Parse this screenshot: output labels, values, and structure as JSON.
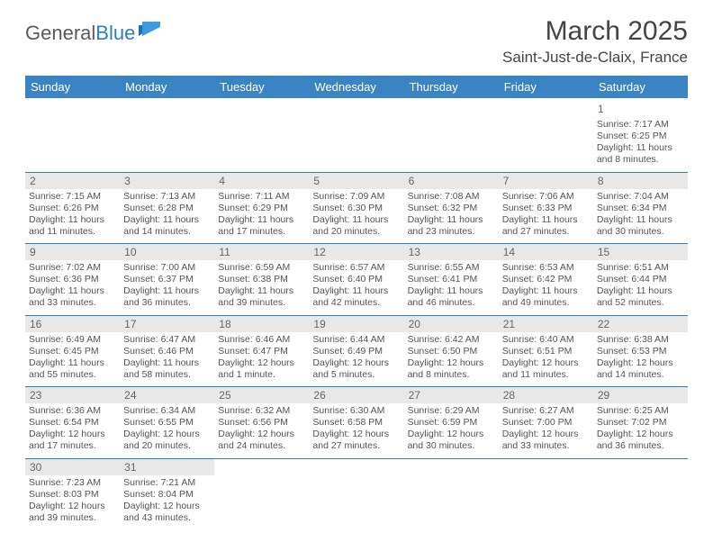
{
  "brand": {
    "part1": "General",
    "part2": "Blue"
  },
  "title": "March 2025",
  "location": "Saint-Just-de-Claix, France",
  "colors": {
    "header_bg": "#3b84c4",
    "header_text": "#ffffff",
    "row_divider": "#2f7ec0",
    "daynum_bg": "#e8e8e8",
    "body_text": "#555555",
    "brand_gray": "#5a5a5a",
    "brand_blue": "#2f7ec0"
  },
  "weekdays": [
    "Sunday",
    "Monday",
    "Tuesday",
    "Wednesday",
    "Thursday",
    "Friday",
    "Saturday"
  ],
  "weeks": [
    [
      null,
      null,
      null,
      null,
      null,
      null,
      {
        "n": "1",
        "sr": "7:17 AM",
        "ss": "6:25 PM",
        "dl": "11 hours and 8 minutes."
      }
    ],
    [
      {
        "n": "2",
        "sr": "7:15 AM",
        "ss": "6:26 PM",
        "dl": "11 hours and 11 minutes."
      },
      {
        "n": "3",
        "sr": "7:13 AM",
        "ss": "6:28 PM",
        "dl": "11 hours and 14 minutes."
      },
      {
        "n": "4",
        "sr": "7:11 AM",
        "ss": "6:29 PM",
        "dl": "11 hours and 17 minutes."
      },
      {
        "n": "5",
        "sr": "7:09 AM",
        "ss": "6:30 PM",
        "dl": "11 hours and 20 minutes."
      },
      {
        "n": "6",
        "sr": "7:08 AM",
        "ss": "6:32 PM",
        "dl": "11 hours and 23 minutes."
      },
      {
        "n": "7",
        "sr": "7:06 AM",
        "ss": "6:33 PM",
        "dl": "11 hours and 27 minutes."
      },
      {
        "n": "8",
        "sr": "7:04 AM",
        "ss": "6:34 PM",
        "dl": "11 hours and 30 minutes."
      }
    ],
    [
      {
        "n": "9",
        "sr": "7:02 AM",
        "ss": "6:36 PM",
        "dl": "11 hours and 33 minutes."
      },
      {
        "n": "10",
        "sr": "7:00 AM",
        "ss": "6:37 PM",
        "dl": "11 hours and 36 minutes."
      },
      {
        "n": "11",
        "sr": "6:59 AM",
        "ss": "6:38 PM",
        "dl": "11 hours and 39 minutes."
      },
      {
        "n": "12",
        "sr": "6:57 AM",
        "ss": "6:40 PM",
        "dl": "11 hours and 42 minutes."
      },
      {
        "n": "13",
        "sr": "6:55 AM",
        "ss": "6:41 PM",
        "dl": "11 hours and 46 minutes."
      },
      {
        "n": "14",
        "sr": "6:53 AM",
        "ss": "6:42 PM",
        "dl": "11 hours and 49 minutes."
      },
      {
        "n": "15",
        "sr": "6:51 AM",
        "ss": "6:44 PM",
        "dl": "11 hours and 52 minutes."
      }
    ],
    [
      {
        "n": "16",
        "sr": "6:49 AM",
        "ss": "6:45 PM",
        "dl": "11 hours and 55 minutes."
      },
      {
        "n": "17",
        "sr": "6:47 AM",
        "ss": "6:46 PM",
        "dl": "11 hours and 58 minutes."
      },
      {
        "n": "18",
        "sr": "6:46 AM",
        "ss": "6:47 PM",
        "dl": "12 hours and 1 minute."
      },
      {
        "n": "19",
        "sr": "6:44 AM",
        "ss": "6:49 PM",
        "dl": "12 hours and 5 minutes."
      },
      {
        "n": "20",
        "sr": "6:42 AM",
        "ss": "6:50 PM",
        "dl": "12 hours and 8 minutes."
      },
      {
        "n": "21",
        "sr": "6:40 AM",
        "ss": "6:51 PM",
        "dl": "12 hours and 11 minutes."
      },
      {
        "n": "22",
        "sr": "6:38 AM",
        "ss": "6:53 PM",
        "dl": "12 hours and 14 minutes."
      }
    ],
    [
      {
        "n": "23",
        "sr": "6:36 AM",
        "ss": "6:54 PM",
        "dl": "12 hours and 17 minutes."
      },
      {
        "n": "24",
        "sr": "6:34 AM",
        "ss": "6:55 PM",
        "dl": "12 hours and 20 minutes."
      },
      {
        "n": "25",
        "sr": "6:32 AM",
        "ss": "6:56 PM",
        "dl": "12 hours and 24 minutes."
      },
      {
        "n": "26",
        "sr": "6:30 AM",
        "ss": "6:58 PM",
        "dl": "12 hours and 27 minutes."
      },
      {
        "n": "27",
        "sr": "6:29 AM",
        "ss": "6:59 PM",
        "dl": "12 hours and 30 minutes."
      },
      {
        "n": "28",
        "sr": "6:27 AM",
        "ss": "7:00 PM",
        "dl": "12 hours and 33 minutes."
      },
      {
        "n": "29",
        "sr": "6:25 AM",
        "ss": "7:02 PM",
        "dl": "12 hours and 36 minutes."
      }
    ],
    [
      {
        "n": "30",
        "sr": "7:23 AM",
        "ss": "8:03 PM",
        "dl": "12 hours and 39 minutes."
      },
      {
        "n": "31",
        "sr": "7:21 AM",
        "ss": "8:04 PM",
        "dl": "12 hours and 43 minutes."
      },
      null,
      null,
      null,
      null,
      null
    ]
  ],
  "labels": {
    "sunrise": "Sunrise: ",
    "sunset": "Sunset: ",
    "daylight": "Daylight: "
  }
}
